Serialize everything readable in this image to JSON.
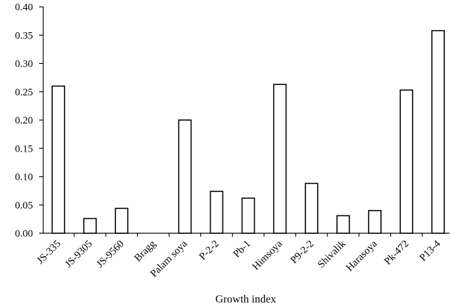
{
  "chart_data": {
    "type": "bar",
    "title": "",
    "xlabel": "Growth index",
    "ylabel": "",
    "ylim": [
      0,
      0.4
    ],
    "yticks": [
      "0.00",
      "0.05",
      "0.10",
      "0.15",
      "0.20",
      "0.25",
      "0.30",
      "0.35",
      "0.40"
    ],
    "categories": [
      "JS-335",
      "JS-9305",
      "JS-9560",
      "Bragg",
      "Palam soya",
      "P-2-2",
      "Pb-1",
      "Himsoya",
      "P9-2-2",
      "Shivalik",
      "Harasoya",
      "Pk-472",
      "P13-4"
    ],
    "values": [
      0.26,
      0.026,
      0.044,
      0.0,
      0.2,
      0.074,
      0.062,
      0.263,
      0.088,
      0.031,
      0.04,
      0.253,
      0.358
    ],
    "grid": false,
    "legend": "none",
    "bar_fill": "#ffffff",
    "bar_stroke": "#000000"
  }
}
